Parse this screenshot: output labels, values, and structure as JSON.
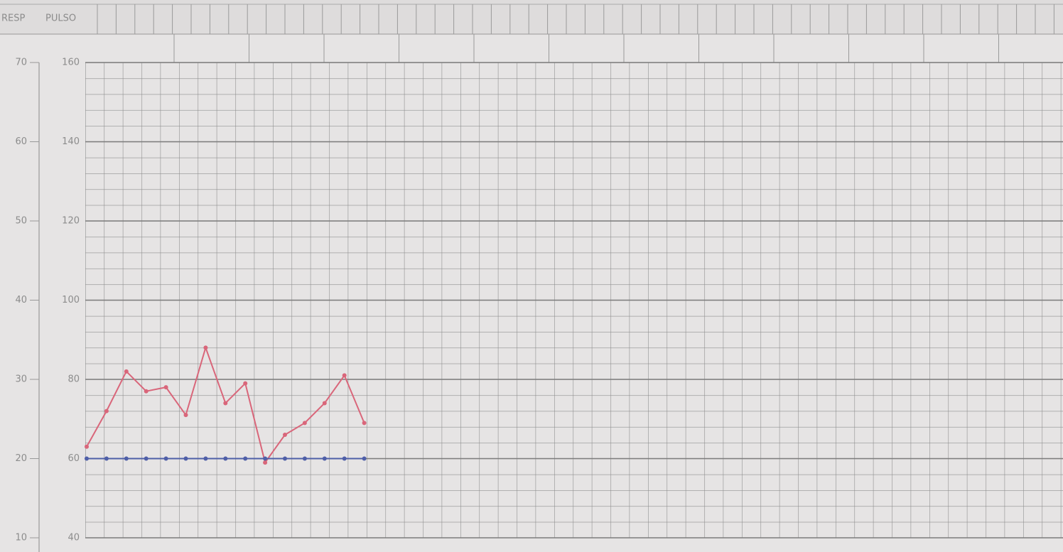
{
  "chart_data": {
    "type": "line",
    "ylabel": "PULSO",
    "y2label": "RESP",
    "ylim": [
      40,
      160
    ],
    "yticks": [
      40,
      60,
      80,
      100,
      120,
      140,
      160
    ],
    "y2lim": [
      10,
      70
    ],
    "y2ticks": [
      10,
      20,
      30,
      40,
      50,
      60,
      70
    ],
    "grid": true,
    "series": [
      {
        "color": "#d9667a",
        "values": [
          63,
          72,
          82,
          77,
          78,
          71,
          88,
          74,
          79,
          59,
          66,
          69,
          74,
          81,
          69
        ]
      },
      {
        "color": "#4f5fa8",
        "axis": "y2",
        "values": [
          20,
          20,
          20,
          20,
          20,
          20,
          20,
          20,
          20,
          20,
          20,
          20,
          20,
          20,
          20
        ]
      }
    ]
  }
}
